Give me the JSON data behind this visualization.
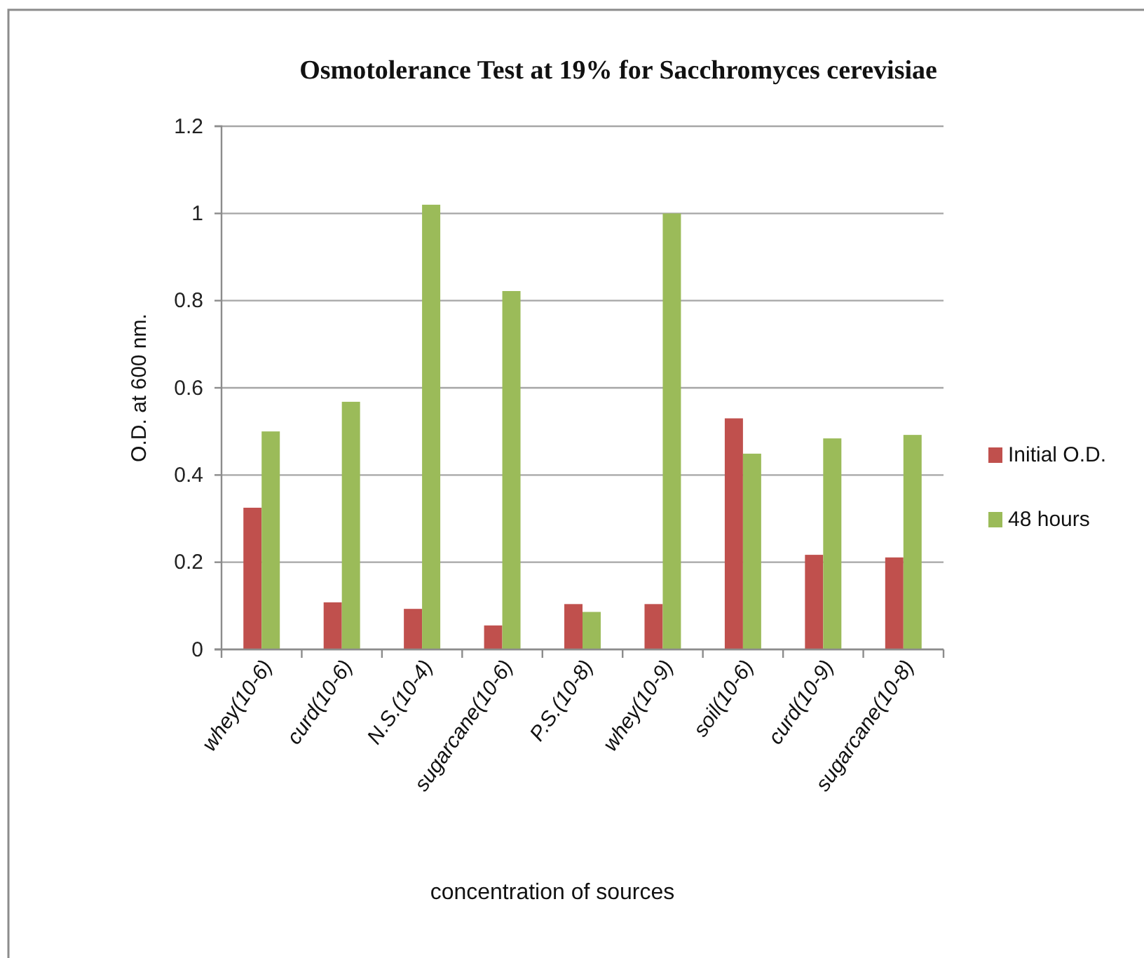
{
  "chart_data": {
    "type": "bar",
    "title": "Osmotolerance Test at 19% for Sacchromyces cerevisiae",
    "xlabel": "concentration of sources",
    "ylabel": "O.D. at 600 nm.",
    "categories": [
      "whey(10-6)",
      "curd(10-6)",
      "N.S.(10-4)",
      "sugarcane(10-6)",
      "P.S.(10-8)",
      "whey(10-9)",
      "soil(10-6)",
      "curd(10-9)",
      "sugarcane(10-8)"
    ],
    "series": [
      {
        "name": "Initial O.D.",
        "color": "#c0504d",
        "values": [
          0.325,
          0.108,
          0.093,
          0.055,
          0.104,
          0.104,
          0.53,
          0.217,
          0.211
        ]
      },
      {
        "name": "48 hours",
        "color": "#9bbb59",
        "values": [
          0.5,
          0.568,
          1.02,
          0.822,
          0.086,
          1.0,
          0.449,
          0.484,
          0.492
        ]
      }
    ],
    "ylim": [
      0,
      1.2
    ],
    "yticks": [
      0,
      0.2,
      0.4,
      0.6,
      0.8,
      1,
      1.2
    ],
    "grid": "y",
    "legend": "right"
  }
}
